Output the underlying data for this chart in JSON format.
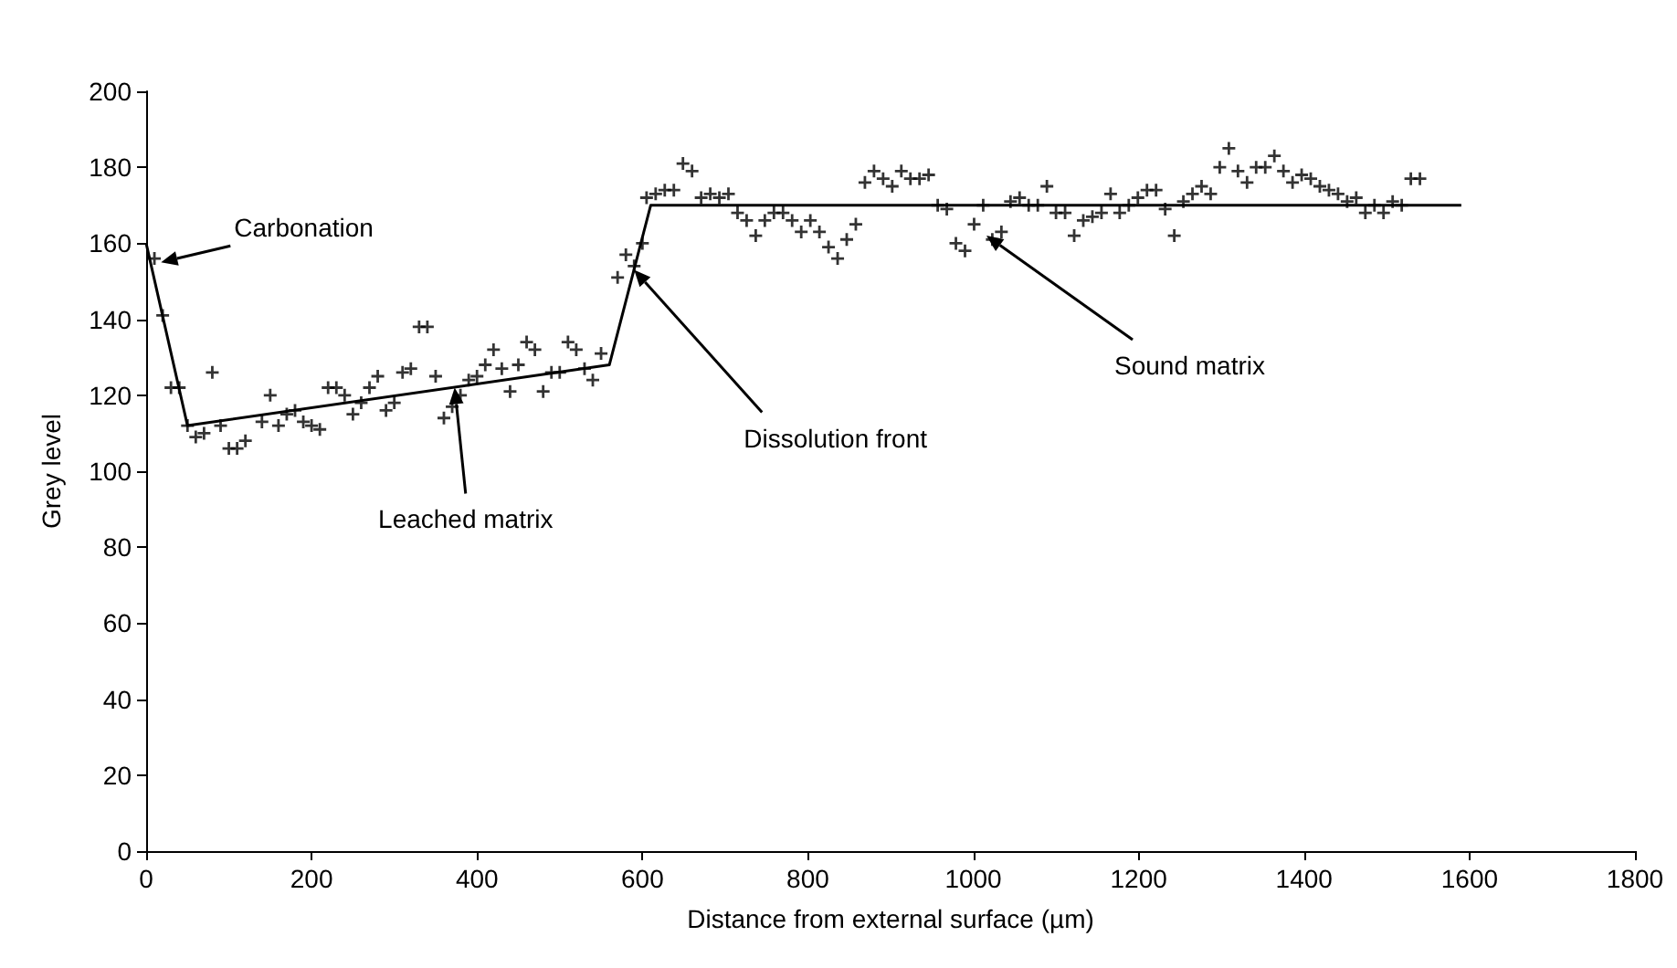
{
  "chart_data": {
    "type": "scatter",
    "xlabel": "Distance from external surface (µm)",
    "ylabel": "Grey level",
    "xlim": [
      0,
      1800
    ],
    "xticks": [
      0,
      200,
      400,
      600,
      800,
      1000,
      1200,
      1400,
      1600,
      1800
    ],
    "ylim": [
      0,
      200
    ],
    "yticks": [
      0,
      20,
      40,
      60,
      80,
      100,
      120,
      140,
      160,
      180,
      200
    ],
    "grid": false,
    "series": [
      {
        "type": "scatter",
        "color": "#000000",
        "marker": "cross",
        "x": [
          10,
          20,
          30,
          40,
          50,
          60,
          70,
          80,
          90,
          100,
          110,
          120,
          140,
          150,
          160,
          170,
          180,
          190,
          200,
          210,
          220,
          230,
          240,
          250,
          260,
          270,
          280,
          290,
          300,
          310,
          320,
          330,
          340,
          350,
          360,
          370,
          380,
          390,
          400,
          410,
          420,
          430,
          440,
          450,
          460,
          470,
          480,
          490,
          500,
          510,
          520,
          530,
          540,
          550,
          570,
          580,
          590,
          600,
          605,
          616,
          627,
          638,
          649,
          660,
          671,
          682,
          693,
          704,
          715,
          726,
          737,
          748,
          759,
          770,
          781,
          792,
          803,
          814,
          825,
          836,
          847,
          858,
          869,
          880,
          891,
          902,
          913,
          924,
          935,
          946,
          957,
          968,
          979,
          990,
          1001,
          1012,
          1023,
          1034,
          1045,
          1056,
          1067,
          1078,
          1089,
          1100,
          1111,
          1122,
          1133,
          1144,
          1155,
          1166,
          1177,
          1188,
          1199,
          1210,
          1221,
          1232,
          1243,
          1254,
          1265,
          1276,
          1287,
          1298,
          1309,
          1320,
          1331,
          1342,
          1353,
          1364,
          1375,
          1386,
          1397,
          1408,
          1419,
          1430,
          1441,
          1452,
          1463,
          1474,
          1485,
          1496,
          1507,
          1518,
          1529,
          1540
        ],
        "values": [
          156,
          141,
          122,
          122,
          112,
          109,
          110,
          126,
          112,
          106,
          106,
          108,
          113,
          120,
          112,
          115,
          116,
          113,
          112,
          111,
          122,
          122,
          120,
          115,
          118,
          122,
          125,
          116,
          118,
          126,
          127,
          138,
          138,
          125,
          114,
          117,
          120,
          124,
          125,
          128,
          132,
          127,
          121,
          128,
          134,
          132,
          121,
          126,
          126,
          134,
          132,
          127,
          124,
          131,
          151,
          157,
          154,
          160,
          172,
          173,
          174,
          174,
          181,
          179,
          172,
          173,
          172,
          173,
          168,
          166,
          162,
          166,
          168,
          168,
          166,
          163,
          166,
          163,
          159,
          156,
          161,
          165,
          176,
          179,
          177,
          175,
          179,
          177,
          177,
          178,
          170,
          169,
          160,
          158,
          165,
          170,
          161,
          163,
          171,
          172,
          170,
          170,
          175,
          168,
          168,
          162,
          166,
          167,
          168,
          173,
          168,
          170,
          172,
          174,
          174,
          169,
          162,
          171,
          173,
          175,
          173,
          180,
          185,
          179,
          176,
          180,
          180,
          183,
          179,
          176,
          178,
          177,
          175,
          174,
          173,
          171,
          172,
          168,
          170,
          168,
          171,
          170,
          177,
          177
        ]
      },
      {
        "type": "line",
        "color": "#000000",
        "marker": "none",
        "line_style": "solid",
        "x": [
          0,
          50,
          560,
          610,
          1590
        ],
        "values": [
          160,
          112,
          128,
          170,
          170
        ]
      }
    ],
    "annotations": [
      {
        "text": "Carbonation",
        "x": 18,
        "y": 155
      },
      {
        "text": "Leached matrix",
        "x": 373,
        "y": 122
      },
      {
        "text": "Dissolution front",
        "x": 590,
        "y": 153
      },
      {
        "text": "Sound matrix",
        "x": 1016,
        "y": 162
      }
    ]
  }
}
